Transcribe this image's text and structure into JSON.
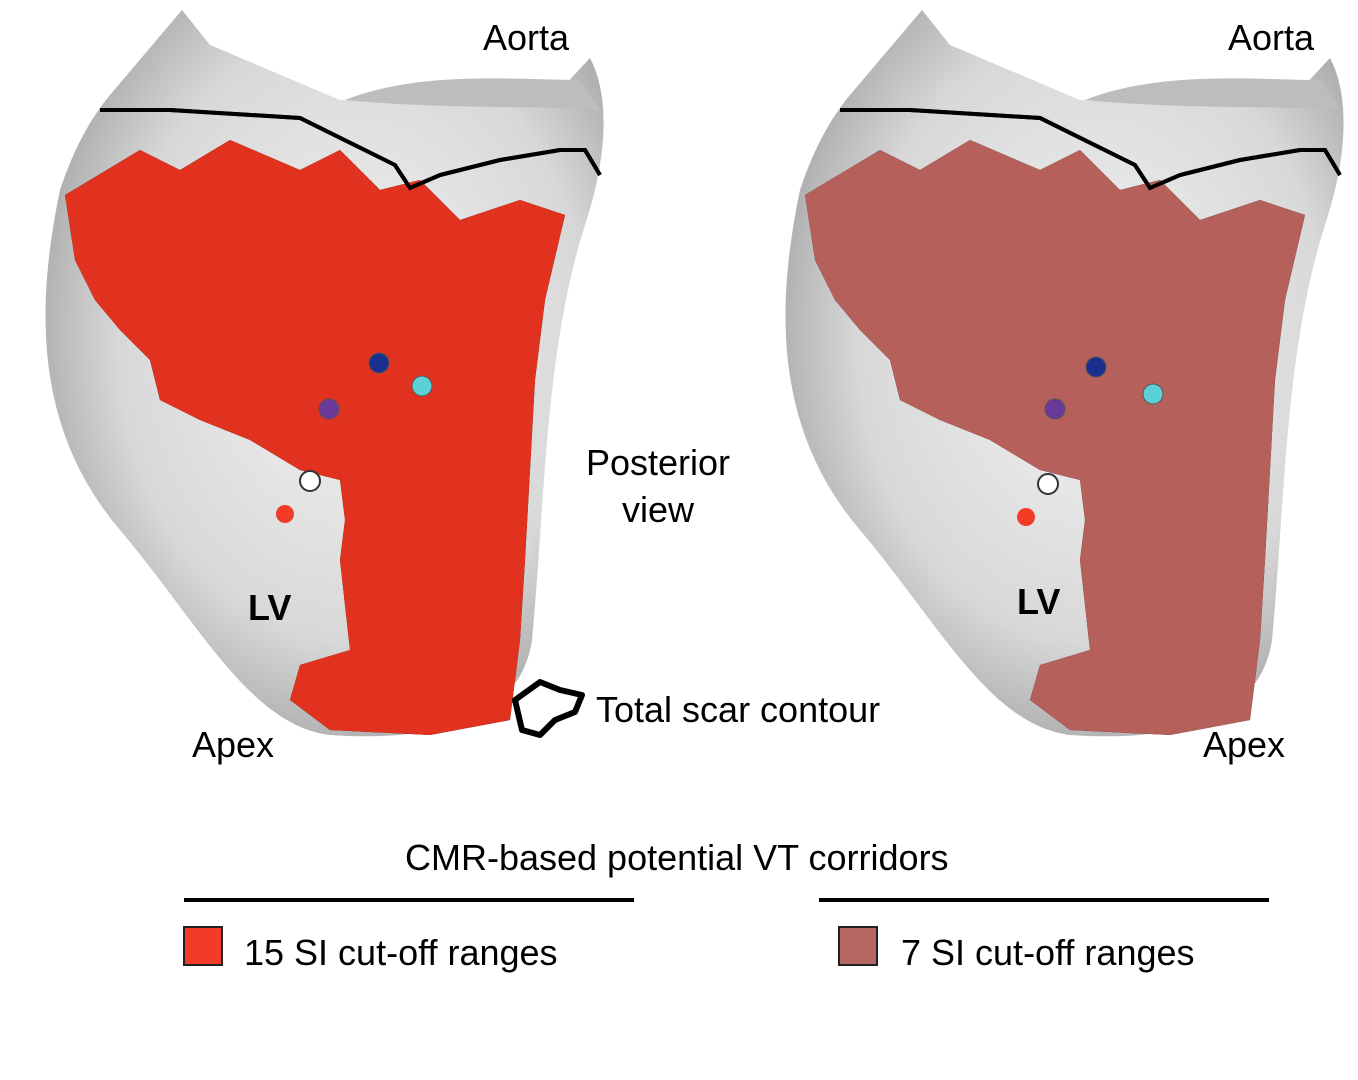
{
  "panels": [
    {
      "top_label": "Aorta",
      "bottom_label": "Apex",
      "chamber_label": "LV",
      "scar_color": "#e0321e"
    },
    {
      "top_label": "Aorta",
      "bottom_label": "Apex",
      "chamber_label": "LV",
      "scar_color": "#b5605a"
    }
  ],
  "view_label_line1": "Posterior",
  "view_label_line2": "view",
  "contour_legend": "Total scar contour",
  "legend": {
    "title": "CMR-based potential VT corridors",
    "items": [
      {
        "label": "15 SI cut-off ranges",
        "color": "#f23c28"
      },
      {
        "label": "7 SI cut-off ranges",
        "color": "#b56562"
      }
    ]
  },
  "marker_colors": [
    "#1a2f8f",
    "#5cd0d8",
    "#6a3a9a",
    "#ffffff",
    "#f23c28"
  ]
}
